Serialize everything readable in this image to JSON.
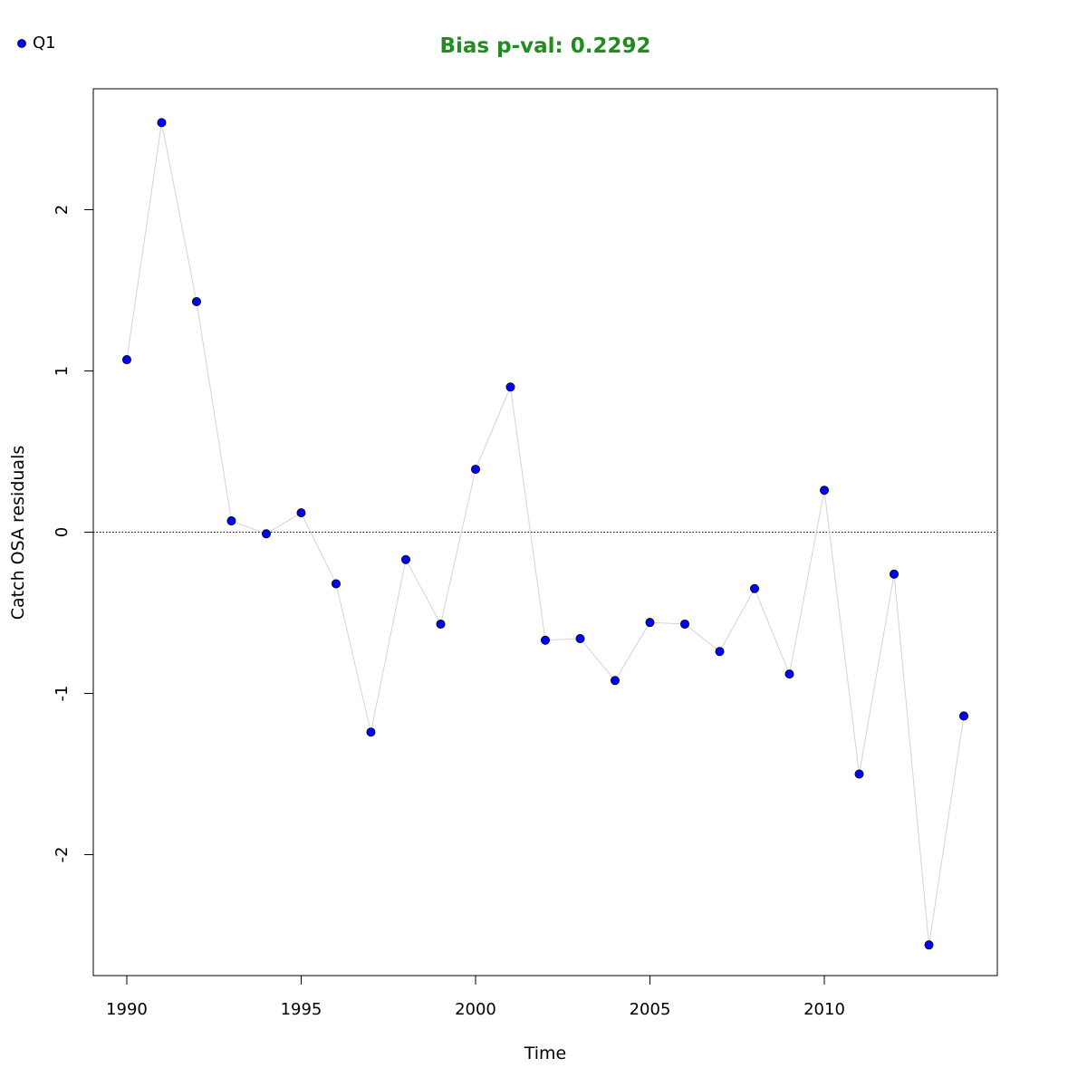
{
  "chart_data": {
    "type": "line",
    "title": "Bias p-val: 0.2292",
    "title_color": "#228B22",
    "xlabel": "Time",
    "ylabel": "Catch OSA residuals",
    "x": [
      1990,
      1991,
      1992,
      1993,
      1994,
      1995,
      1996,
      1997,
      1998,
      1999,
      2000,
      2001,
      2002,
      2003,
      2004,
      2005,
      2006,
      2007,
      2008,
      2009,
      2010,
      2011,
      2012,
      2013,
      2014
    ],
    "series": [
      {
        "name": "Q1",
        "color": "#0000FF",
        "line_color": "#D3D3D3",
        "values": [
          1.07,
          2.54,
          1.43,
          0.07,
          -0.01,
          0.12,
          -0.32,
          -1.24,
          -0.17,
          -0.57,
          0.39,
          0.9,
          -0.67,
          -0.66,
          -0.92,
          -0.56,
          -0.57,
          -0.74,
          -0.35,
          -0.88,
          0.26,
          -1.5,
          -0.26,
          -2.56,
          -1.14
        ]
      }
    ],
    "xlim": [
      1989.04,
      2014.96
    ],
    "ylim": [
      -2.75,
      2.75
    ],
    "xticks": [
      1990,
      1995,
      2000,
      2005,
      2010
    ],
    "xtick_labels": [
      "1990",
      "1995",
      "2000",
      "2005",
      "2010"
    ],
    "yticks": [
      -2,
      -1,
      0,
      1,
      2
    ],
    "ytick_labels": [
      "-2",
      "-1",
      "0",
      "1",
      "2"
    ],
    "reference_line": {
      "y": 0,
      "style": "dotted",
      "color": "#000000"
    },
    "grid": false,
    "legend": {
      "position": "top-left",
      "entries": [
        "Q1"
      ]
    }
  }
}
